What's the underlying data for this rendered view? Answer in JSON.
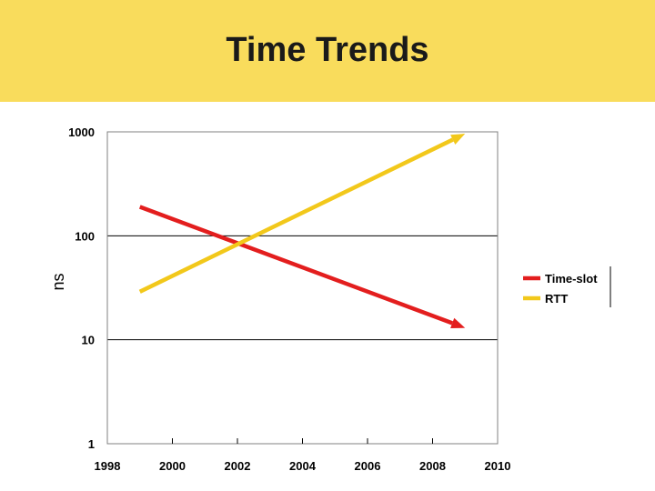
{
  "slide": {
    "title": "Time Trends",
    "title_bar_color": "#f9dc5c"
  },
  "chart_data": {
    "type": "line",
    "title": "",
    "xlabel": "",
    "ylabel": "ns",
    "xlim": [
      1998,
      2010
    ],
    "ylim": [
      1,
      1000
    ],
    "y_scale": "log",
    "grid": "horizontal",
    "legend_position": "right",
    "x_ticks": [
      "1998",
      "2000",
      "2002",
      "2004",
      "2006",
      "2008",
      "2010"
    ],
    "y_ticks": [
      "1",
      "10",
      "100",
      "1000"
    ],
    "series": [
      {
        "name": "Time-slot",
        "color": "#e31e1e",
        "x": [
          1999,
          2009
        ],
        "y": [
          190,
          13
        ]
      },
      {
        "name": "RTT",
        "color": "#f2c81b",
        "x": [
          1999,
          2009
        ],
        "y": [
          29,
          960
        ]
      }
    ]
  }
}
